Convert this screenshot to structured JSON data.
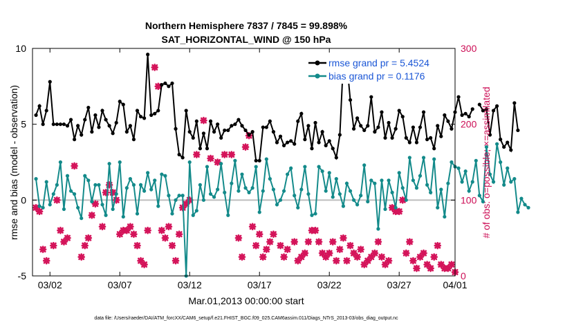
{
  "chart_data": {
    "type": "line",
    "title": "Northern Hemisphere 7837 / 7845 = 99.898%",
    "subtitle": "SAT_HORIZONTAL_WIND @ 150 hPa",
    "xlabel": "Mar.01,2013 00:00:00 start",
    "ylabel": "rmse and bias (model - observation)",
    "y2label": "# of obs: o=possible; ×=assimilated",
    "footnote": "data file: /Users/raeder/DAI/ATM_forcXX/CAM6_setup/f.e21.FHIST_BGC.f09_025.CAM6assim.011/Diags_NTrS_2013-03/obs_diag_output.nc",
    "xlim": [
      0.75,
      31.0
    ],
    "ylim": [
      -5,
      10
    ],
    "y2lim": [
      0,
      300
    ],
    "grid": false,
    "x_ticks": [
      {
        "value": 2,
        "label": "03/02"
      },
      {
        "value": 7,
        "label": "03/07"
      },
      {
        "value": 12,
        "label": "03/12"
      },
      {
        "value": 17,
        "label": "03/17"
      },
      {
        "value": 22,
        "label": "03/22"
      },
      {
        "value": 27,
        "label": "03/27"
      },
      {
        "value": 31,
        "label": "04/01"
      }
    ],
    "y_ticks": [
      {
        "value": -5,
        "label": "-5"
      },
      {
        "value": 0,
        "label": "0"
      },
      {
        "value": 5,
        "label": "5"
      },
      {
        "value": 10,
        "label": "10"
      }
    ],
    "y2_ticks": [
      {
        "value": 0,
        "label": "0"
      },
      {
        "value": 100,
        "label": "100"
      },
      {
        "value": 200,
        "label": "200"
      },
      {
        "value": 300,
        "label": "300"
      }
    ],
    "zero_line": 0,
    "x_start": 1.0,
    "x_step": 0.25,
    "series": [
      {
        "name": "rmse",
        "legend": "rmse grand pr = 5.4524",
        "color": "#000000",
        "marker": "star",
        "values": [
          5.6,
          6.2,
          5.0,
          5.9,
          7.8,
          5.0,
          5.0,
          5.0,
          5.0,
          4.9,
          5.3,
          4.0,
          4.9,
          4.3,
          5.3,
          6.1,
          4.5,
          5.6,
          4.8,
          5.9,
          5.3,
          4.9,
          4.4,
          5.1,
          6.5,
          6.3,
          4.5,
          4.9,
          4.0,
          5.9,
          5.5,
          5.4,
          9.6,
          5.6,
          5.7,
          5.9,
          7.6,
          7.7,
          7.5,
          7.7,
          4.7,
          3.0,
          2.8,
          5.9,
          4.5,
          4.1,
          5.2,
          3.4,
          4.4,
          3.4,
          5.2,
          4.5,
          5.0,
          4.1,
          4.6,
          4.6,
          4.9,
          5.0,
          5.3,
          4.9,
          4.6,
          4.3,
          4.5,
          2.6,
          2.6,
          4.8,
          4.8,
          5.2,
          4.5,
          3.8,
          4.2,
          3.6,
          3.8,
          3.9,
          3.7,
          5.2,
          5.7,
          4.0,
          4.9,
          3.4,
          5.1,
          3.8,
          4.5,
          3.6,
          3.9,
          3.4,
          2.8,
          4.3,
          9.1,
          9.1,
          6.6,
          4.7,
          5.4,
          4.9,
          4.6,
          4.9,
          6.8,
          4.5,
          4.8,
          5.8,
          4.1,
          5.1,
          4.1,
          4.7,
          5.9,
          5.5,
          4.1,
          3.8,
          4.8,
          3.8,
          4.8,
          5.8,
          4.0,
          4.1,
          3.4,
          4.9,
          4.2,
          5.6,
          5.2,
          4.7,
          5.8,
          6.8,
          5.6,
          5.7,
          5.5,
          6.0,
          null,
          6.3,
          5.9,
          6.0,
          4.3,
          5.9,
          6.2,
          4.0,
          3.5,
          3.8,
          3.3,
          6.4,
          4.6
        ]
      },
      {
        "name": "bias",
        "legend": "bias grand pr = 0.1176",
        "color": "#138a8a",
        "marker": "star",
        "values": [
          1.4,
          -0.4,
          -0.5,
          1.2,
          -0.3,
          0.4,
          1.0,
          2.5,
          -0.6,
          1.6,
          0.6,
          0.4,
          -0.5,
          -1.2,
          1.6,
          1.3,
          -0.1,
          1.0,
          1.0,
          -0.3,
          -1.0,
          2.4,
          -0.6,
          0.4,
          2.5,
          -1.1,
          0.8,
          1.4,
          1.0,
          -0.9,
          1.0,
          0.6,
          1.8,
          0.7,
          1.3,
          -0.4,
          1.7,
          1.6,
          0.3,
          -0.9,
          0.0,
          0.3,
          0.3,
          -5.0,
          2.5,
          -1.0,
          -0.7,
          1.0,
          0.0,
          2.2,
          0.4,
          0.2,
          0.7,
          2.4,
          0.5,
          -1.0,
          1.1,
          2.6,
          0.6,
          1.7,
          0.8,
          0.5,
          0.8,
          2.2,
          -0.8,
          0.6,
          2.7,
          1.4,
          0.7,
          -0.3,
          0.0,
          0.6,
          1.7,
          2.1,
          0.3,
          -0.5,
          0.7,
          2.2,
          0.4,
          -1.0,
          -0.9,
          2.2,
          1.9,
          0.6,
          1.8,
          0.2,
          1.4,
          0.4,
          -0.4,
          1.1,
          0.6,
          0.0,
          -0.3,
          0.3,
          2.3,
          -0.1,
          1.3,
          1.1,
          -1.9,
          1.3,
          -0.6,
          1.3,
          0.5,
          -0.5,
          1.8,
          0.8,
          0.0,
          2.8,
          1.3,
          0.8,
          1.6,
          2.8,
          1.0,
          0.5,
          2.7,
          -0.5,
          0.7,
          -1.1,
          1.1,
          2.5,
          2.2,
          2.1,
          1.2,
          1.9,
          0.6,
          1.2,
          2.6,
          0.3,
          -0.1,
          3.5,
          1.7,
          1.2,
          3.7,
          2.5,
          1.0,
          2.1,
          1.2,
          1.4,
          -0.8,
          0.1,
          -0.3,
          -0.5
        ]
      }
    ],
    "obs_assimilated": {
      "name": "# of obs assimilated",
      "color": "#d4145a",
      "marker": "x",
      "y_axis": "right",
      "points": [
        [
          1.0,
          90
        ],
        [
          1.25,
          85
        ],
        [
          1.5,
          35
        ],
        [
          1.75,
          20
        ],
        [
          2.25,
          40
        ],
        [
          2.5,
          100
        ],
        [
          2.75,
          60
        ],
        [
          3.0,
          45
        ],
        [
          3.25,
          50
        ],
        [
          3.75,
          145
        ],
        [
          4.25,
          25
        ],
        [
          4.5,
          40
        ],
        [
          4.75,
          50
        ],
        [
          5.0,
          80
        ],
        [
          5.25,
          95
        ],
        [
          5.75,
          65
        ],
        [
          6.0,
          110
        ],
        [
          6.25,
          120
        ],
        [
          6.5,
          110
        ],
        [
          6.75,
          100
        ],
        [
          7.0,
          55
        ],
        [
          7.25,
          60
        ],
        [
          7.5,
          60
        ],
        [
          7.75,
          65
        ],
        [
          8.0,
          55
        ],
        [
          8.25,
          40
        ],
        [
          8.5,
          20
        ],
        [
          8.75,
          15
        ],
        [
          9.0,
          60
        ],
        [
          9.5,
          275
        ],
        [
          9.75,
          250
        ],
        [
          10.0,
          60
        ],
        [
          10.25,
          50
        ],
        [
          10.5,
          65
        ],
        [
          10.75,
          40
        ],
        [
          11.0,
          20
        ],
        [
          11.25,
          55
        ],
        [
          11.5,
          90
        ],
        [
          11.75,
          95
        ],
        [
          12.0,
          100
        ],
        [
          12.5,
          160
        ],
        [
          13.0,
          205
        ],
        [
          13.5,
          155
        ],
        [
          14.0,
          150
        ],
        [
          14.5,
          160
        ],
        [
          15.0,
          160
        ],
        [
          15.5,
          50
        ],
        [
          15.75,
          25
        ],
        [
          16.0,
          170
        ],
        [
          16.25,
          185
        ],
        [
          16.5,
          65
        ],
        [
          16.75,
          40
        ],
        [
          17.0,
          55
        ],
        [
          17.25,
          25
        ],
        [
          17.5,
          35
        ],
        [
          17.75,
          45
        ],
        [
          18.0,
          55
        ],
        [
          18.5,
          40
        ],
        [
          18.75,
          25
        ],
        [
          19.0,
          35
        ],
        [
          19.5,
          45
        ],
        [
          19.75,
          20
        ],
        [
          20.0,
          25
        ],
        [
          20.25,
          30
        ],
        [
          20.5,
          45
        ],
        [
          20.75,
          60
        ],
        [
          21.0,
          60
        ],
        [
          21.25,
          45
        ],
        [
          21.5,
          30
        ],
        [
          21.75,
          25
        ],
        [
          22.0,
          30
        ],
        [
          22.25,
          45
        ],
        [
          22.5,
          20
        ],
        [
          22.75,
          35
        ],
        [
          23.0,
          50
        ],
        [
          23.25,
          20
        ],
        [
          23.5,
          40
        ],
        [
          23.75,
          30
        ],
        [
          24.0,
          25
        ],
        [
          24.25,
          35
        ],
        [
          24.5,
          15
        ],
        [
          24.75,
          20
        ],
        [
          25.0,
          25
        ],
        [
          25.25,
          30
        ],
        [
          25.5,
          45
        ],
        [
          25.75,
          25
        ],
        [
          26.0,
          15
        ],
        [
          26.25,
          20
        ],
        [
          26.5,
          90
        ],
        [
          26.75,
          85
        ],
        [
          27.0,
          85
        ],
        [
          27.25,
          100
        ],
        [
          27.5,
          30
        ],
        [
          27.75,
          45
        ],
        [
          28.0,
          20
        ],
        [
          28.25,
          10
        ],
        [
          28.5,
          25
        ],
        [
          28.75,
          30
        ],
        [
          29.0,
          15
        ],
        [
          29.25,
          10
        ],
        [
          29.5,
          25
        ],
        [
          29.75,
          40
        ],
        [
          30.0,
          15
        ],
        [
          30.25,
          10
        ],
        [
          30.5,
          10
        ],
        [
          30.75,
          15
        ],
        [
          31.0,
          5
        ]
      ]
    }
  }
}
